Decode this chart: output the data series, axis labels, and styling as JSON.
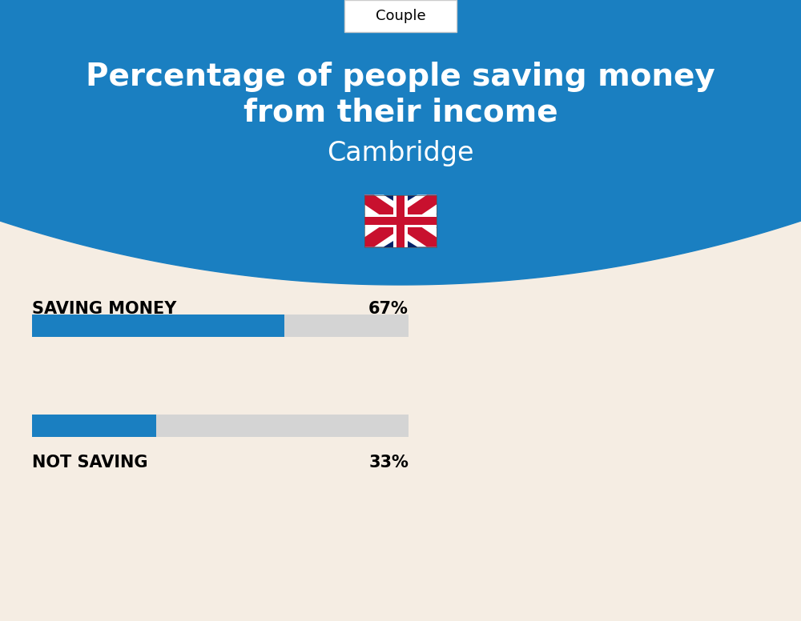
{
  "title_line1": "Percentage of people saving money",
  "title_line2": "from their income",
  "city": "Cambridge",
  "tab_label": "Couple",
  "bg_color": "#f5ede3",
  "circle_color": "#1a7fc1",
  "bar_color": "#1a7fc1",
  "bar_bg_color": "#d4d4d4",
  "saving_label": "SAVING MONEY",
  "saving_pct": 67,
  "saving_pct_label": "67%",
  "not_saving_label": "NOT SAVING",
  "not_saving_pct": 33,
  "not_saving_pct_label": "33%",
  "title_color": "#ffffff",
  "city_color": "#ffffff",
  "label_color": "#000000",
  "tab_bg": "#ffffff",
  "tab_border": "#cccccc",
  "fig_width": 10.0,
  "fig_height": 7.76,
  "dpi": 100
}
